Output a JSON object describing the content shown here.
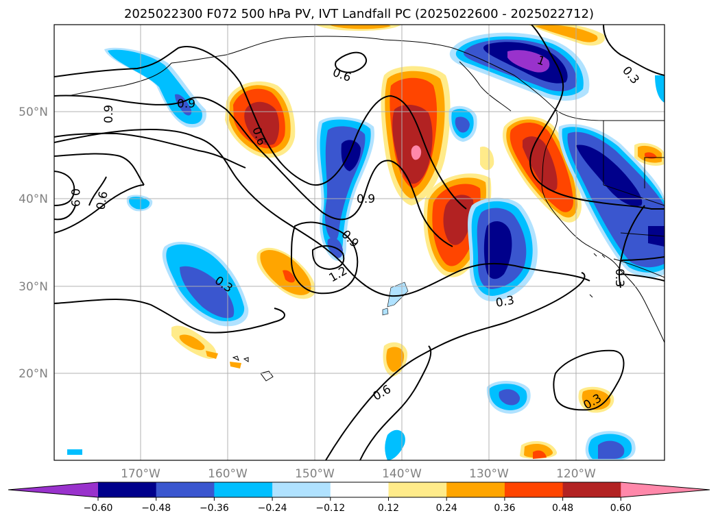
{
  "title": "2025022300 F072 500 hPa PV, IVT Landfall PC (2025022600 - 2025022712)",
  "lat_labels": [
    "50°N",
    "40°N",
    "30°N",
    "20°N"
  ],
  "lon_labels": [
    "170°W",
    "160°W",
    "150°W",
    "140°W",
    "130°W",
    "120°W"
  ],
  "colorbar": {
    "ticks": [
      "−0.60",
      "−0.48",
      "−0.36",
      "−0.24",
      "−0.12",
      "0.12",
      "0.24",
      "0.36",
      "0.48",
      "0.60"
    ],
    "colors": [
      "#9932cc",
      "#00008b",
      "#3a56cf",
      "#00bfff",
      "#b0e2ff",
      "#ffffff",
      "#ffeb8a",
      "#ffa500",
      "#ff4500",
      "#b22222",
      "#ff88aa"
    ]
  },
  "contour_labels": [
    {
      "id": "c1",
      "text": "0.6"
    },
    {
      "id": "c2",
      "text": "0.9"
    },
    {
      "id": "c3",
      "text": "0.9"
    },
    {
      "id": "c4",
      "text": "0.6"
    },
    {
      "id": "c5",
      "text": "0.9"
    },
    {
      "id": "c6",
      "text": "0.6"
    },
    {
      "id": "c7",
      "text": "0.9"
    },
    {
      "id": "c8",
      "text": "0.9"
    },
    {
      "id": "c9",
      "text": "1.2"
    },
    {
      "id": "c10",
      "text": "0.3"
    },
    {
      "id": "c11",
      "text": "0.3"
    },
    {
      "id": "c12",
      "text": "0.6"
    },
    {
      "id": "c13",
      "text": "0.3"
    },
    {
      "id": "c14",
      "text": "0.3"
    },
    {
      "id": "c15",
      "text": "1"
    },
    {
      "id": "c16",
      "text": "0.3"
    }
  ]
}
